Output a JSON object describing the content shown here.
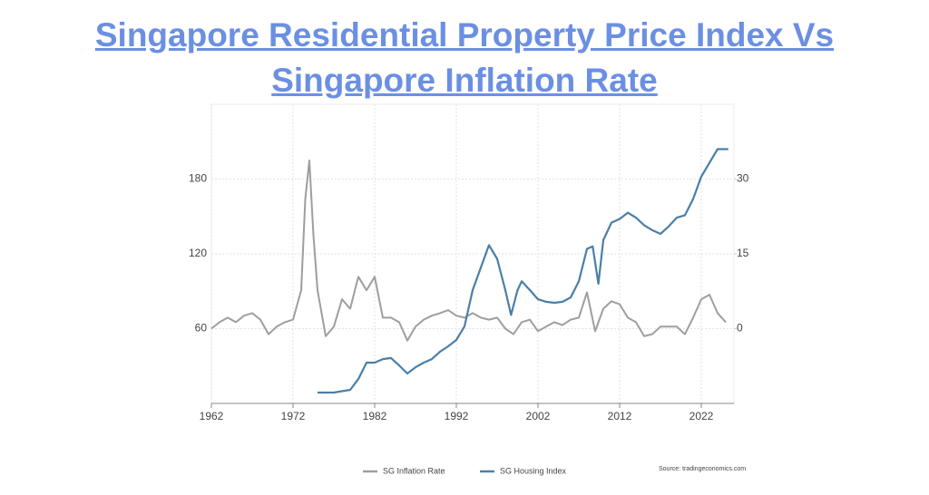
{
  "chart_data": {
    "type": "line",
    "title": "Singapore Residential Property Price Index Vs Singapore Inflation Rate",
    "source": "Source: tradingeconomics.com",
    "xlim": [
      1962,
      2026
    ],
    "xticks": [
      1962,
      1972,
      1982,
      1992,
      2002,
      2012,
      2022
    ],
    "ylim": [
      0,
      240
    ],
    "yticks": [
      60,
      120,
      180
    ],
    "y2lim": [
      -15,
      45
    ],
    "y2ticks": [
      0,
      15,
      30
    ],
    "grid": true,
    "legend": "bottom",
    "series": [
      {
        "name": "SG Inflation Rate",
        "color": "#9e9e9e",
        "axis": "y2",
        "x": [
          1962,
          1963,
          1964,
          1965,
          1966,
          1967,
          1968,
          1969,
          1970,
          1971,
          1972,
          1973,
          1973.5,
          1974,
          1974.5,
          1975,
          1976,
          1977,
          1978,
          1979,
          1980,
          1981,
          1982,
          1983,
          1984,
          1985,
          1986,
          1987,
          1988,
          1989,
          1990,
          1991,
          1992,
          1993,
          1994,
          1995,
          1996,
          1997,
          1998,
          1999,
          2000,
          2001,
          2002,
          2003,
          2004,
          2005,
          2006,
          2007,
          2008,
          2009,
          2010,
          2011,
          2012,
          2013,
          2014,
          2015,
          2016,
          2017,
          2018,
          2019,
          2020,
          2021,
          2022,
          2023,
          2024,
          2025
        ],
        "values": [
          0,
          1.3,
          2.2,
          1.3,
          2.6,
          3.1,
          1.8,
          -1.1,
          0.4,
          1.3,
          1.8,
          7.7,
          26,
          33.7,
          18.7,
          7.7,
          -1.5,
          0.4,
          5.9,
          4,
          10.4,
          7.7,
          10.4,
          2.2,
          2.2,
          1.3,
          -2.4,
          0.4,
          1.8,
          2.6,
          3.1,
          3.7,
          2.6,
          2.2,
          3.1,
          2.2,
          1.8,
          2.2,
          0,
          -1.1,
          1.3,
          1.8,
          -0.5,
          0.4,
          1.3,
          0.7,
          1.8,
          2.2,
          7.3,
          -0.5,
          4,
          5.5,
          4.9,
          2.2,
          1.3,
          -1.5,
          -1.1,
          0.4,
          0.4,
          0.4,
          -1.1,
          2.2,
          5.9,
          6.8,
          3.1,
          1.3
        ]
      },
      {
        "name": "SG Housing Index",
        "color": "#4a7fa8",
        "axis": "y",
        "x": [
          1975,
          1977,
          1979,
          1980,
          1981,
          1982,
          1983,
          1984,
          1985,
          1986,
          1987,
          1988,
          1989,
          1990,
          1991,
          1992,
          1993,
          1994,
          1995,
          1996,
          1997,
          1998,
          1998.7,
          1999.5,
          2000,
          2001,
          2002,
          2003,
          2004,
          2005,
          2006,
          2007,
          2008,
          2008.7,
          2009.4,
          2010,
          2011,
          2012,
          2013,
          2014,
          2015,
          2016,
          2017,
          2018,
          2019,
          2020,
          2021,
          2022,
          2023,
          2024,
          2025.3
        ],
        "values": [
          8.7,
          8.7,
          10.9,
          19.6,
          32.7,
          32.7,
          35.6,
          36.4,
          30.5,
          24,
          29,
          32.7,
          35.6,
          41.5,
          45.8,
          50.9,
          61.8,
          90.9,
          109,
          127,
          116,
          90.9,
          71,
          91,
          98,
          91,
          83.6,
          81.5,
          80.7,
          81.5,
          85,
          98,
          124,
          126,
          96,
          131,
          145,
          148,
          153,
          149,
          143,
          139,
          136,
          142,
          149,
          151,
          164,
          182,
          193,
          204,
          204
        ]
      }
    ]
  }
}
